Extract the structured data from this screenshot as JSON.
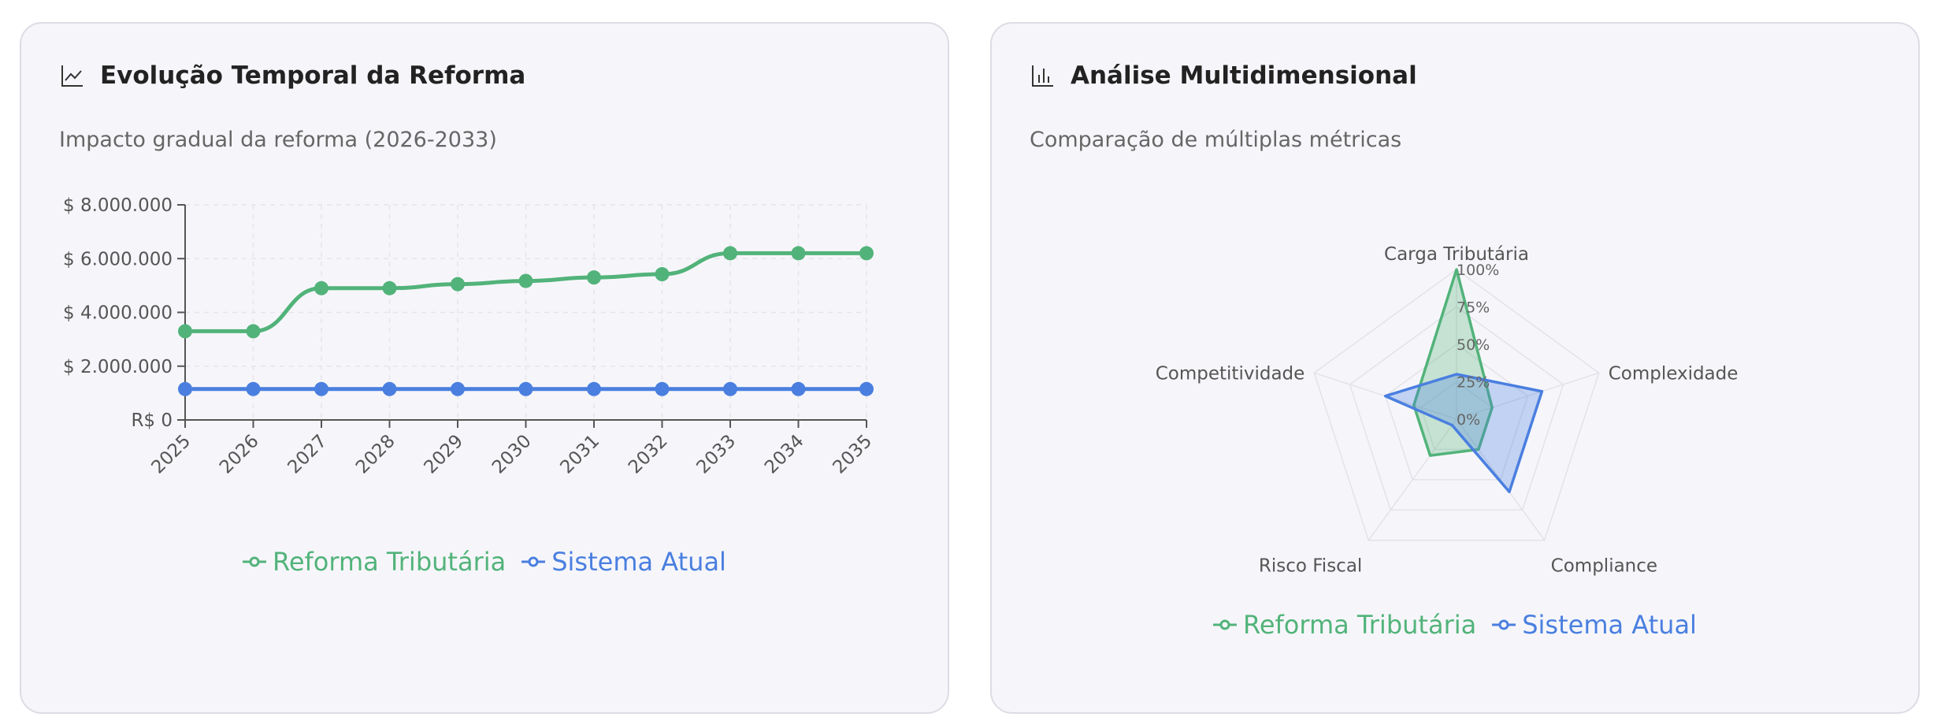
{
  "colors": {
    "reforma": "#52b37a",
    "atual": "#4a7fe0"
  },
  "left_card": {
    "icon": "line-chart-icon",
    "title": "Evolução Temporal da Reforma",
    "subtitle": "Impacto gradual da reforma (2026-2033)"
  },
  "right_card": {
    "icon": "bar-chart-icon",
    "title": "Análise Multidimensional",
    "subtitle": "Comparação de múltiplas métricas"
  },
  "chart_data": [
    {
      "type": "line",
      "x": [
        "2025",
        "2026",
        "2027",
        "2028",
        "2029",
        "2030",
        "2031",
        "2032",
        "2033",
        "2034",
        "2035"
      ],
      "ylim": [
        0,
        8000000
      ],
      "y_ticks": [
        {
          "value": 0,
          "label": "R$ 0"
        },
        {
          "value": 2000000,
          "label": "$ 2.000.000"
        },
        {
          "value": 4000000,
          "label": "$ 4.000.000"
        },
        {
          "value": 6000000,
          "label": "$ 6.000.000"
        },
        {
          "value": 8000000,
          "label": "$ 8.000.000"
        }
      ],
      "grid": true,
      "legend_position": "bottom",
      "series": [
        {
          "name": "Reforma Tributária",
          "color": "#52b37a",
          "values": [
            3300000,
            3300000,
            4900000,
            4900000,
            5050000,
            5170000,
            5300000,
            5420000,
            6200000,
            6200000,
            6200000
          ]
        },
        {
          "name": "Sistema Atual",
          "color": "#4a7fe0",
          "values": [
            1150000,
            1150000,
            1150000,
            1150000,
            1150000,
            1150000,
            1150000,
            1150000,
            1150000,
            1150000,
            1150000
          ]
        }
      ]
    },
    {
      "type": "radar",
      "axes": [
        "Carga Tributária",
        "Complexidade",
        "Compliance",
        "Risco Fiscal",
        "Competitividade"
      ],
      "range": [
        0,
        100
      ],
      "r_ticks": [
        "0%",
        "25%",
        "50%",
        "75%",
        "100%"
      ],
      "legend_position": "bottom",
      "series": [
        {
          "name": "Reforma Tributária",
          "color": "#52b37a",
          "values": [
            100,
            25,
            25,
            30,
            30
          ]
        },
        {
          "name": "Sistema Atual",
          "color": "#4a7fe0",
          "values": [
            30,
            60,
            60,
            5,
            50
          ]
        }
      ]
    }
  ]
}
